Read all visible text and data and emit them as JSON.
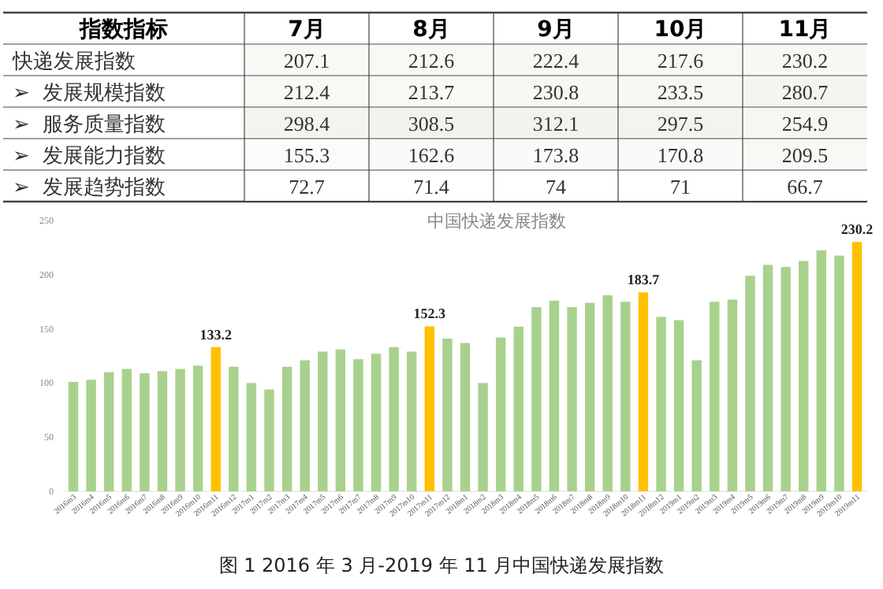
{
  "chart_data": [
    {
      "type": "heatmap",
      "annotations": [
        "指数指标"
      ],
      "categories": [
        "7月",
        "8月",
        "9月",
        "10月",
        "11月"
      ],
      "y_categories": [
        "快递发展指数",
        "➢  发展规模指数",
        "➢  服务质量指数",
        "➢  发展能力指数",
        "➢  发展趋势指数"
      ],
      "cells": [
        [
          207.1,
          212.6,
          222.4,
          217.6,
          230.2
        ],
        [
          212.4,
          213.7,
          230.8,
          233.5,
          280.7
        ],
        [
          298.4,
          308.5,
          312.1,
          297.5,
          254.9
        ],
        [
          155.3,
          162.6,
          173.8,
          170.8,
          209.5
        ],
        [
          72.7,
          71.4,
          74,
          71,
          66.7
        ]
      ],
      "cell_labels": [
        [
          "207.1",
          "212.6",
          "222.4",
          "217.6",
          "230.2"
        ],
        [
          "212.4",
          "213.7",
          "230.8",
          "233.5",
          "280.7"
        ],
        [
          "298.4",
          "308.5",
          "312.1",
          "297.5",
          "254.9"
        ],
        [
          "155.3",
          "162.6",
          "173.8",
          "170.8",
          "209.5"
        ],
        [
          "72.7",
          "71.4",
          "74",
          "71",
          "66.7"
        ]
      ]
    },
    {
      "type": "bar",
      "title": "中国快递发展指数",
      "annotations": [
        "图 1 2016 年 3 月-2019 年 11 月中国快递发展指数"
      ],
      "categories": [
        "2016m3",
        "2016m4",
        "2016m5",
        "2016m6",
        "2016m7",
        "2016m8",
        "2016m9",
        "2016m10",
        "2016m11",
        "2016m12",
        "2017m1",
        "2017m2",
        "2017m3",
        "2017m4",
        "2017m5",
        "2017m6",
        "2017m7",
        "2017m8",
        "2017m9",
        "2017m10",
        "2017m11",
        "2017m12",
        "2018m1",
        "2018m2",
        "2018m3",
        "2018m4",
        "2018m5",
        "2018m6",
        "2018m7",
        "2018m8",
        "2018m9",
        "2018m10",
        "2018m11",
        "2018m12",
        "2019m1",
        "2019m2",
        "2019m3",
        "2019m4",
        "2019m5",
        "2019m6",
        "2019m7",
        "2019m8",
        "2019m9",
        "2019m10",
        "2019m11"
      ],
      "values": [
        101,
        103,
        110,
        113,
        109,
        111,
        113,
        116,
        133.2,
        115,
        100,
        94,
        115,
        121,
        129,
        131,
        122,
        127,
        133,
        129,
        152.3,
        141,
        137,
        100,
        142,
        152,
        170,
        176,
        170,
        174,
        181,
        175,
        183.7,
        161,
        158,
        121,
        175,
        177,
        199,
        209,
        207.1,
        212.6,
        222.4,
        217.6,
        230.2
      ],
      "colors": [
        "#a9d18e",
        "#a9d18e",
        "#a9d18e",
        "#a9d18e",
        "#a9d18e",
        "#a9d18e",
        "#a9d18e",
        "#a9d18e",
        "#ffc000",
        "#a9d18e",
        "#a9d18e",
        "#a9d18e",
        "#a9d18e",
        "#a9d18e",
        "#a9d18e",
        "#a9d18e",
        "#a9d18e",
        "#a9d18e",
        "#a9d18e",
        "#a9d18e",
        "#ffc000",
        "#a9d18e",
        "#a9d18e",
        "#a9d18e",
        "#a9d18e",
        "#a9d18e",
        "#a9d18e",
        "#a9d18e",
        "#a9d18e",
        "#a9d18e",
        "#a9d18e",
        "#a9d18e",
        "#ffc000",
        "#a9d18e",
        "#a9d18e",
        "#a9d18e",
        "#a9d18e",
        "#a9d18e",
        "#a9d18e",
        "#a9d18e",
        "#a9d18e",
        "#a9d18e",
        "#a9d18e",
        "#a9d18e",
        "#ffc000"
      ],
      "value_labels": [
        null,
        null,
        null,
        null,
        null,
        null,
        null,
        null,
        "133.2",
        null,
        null,
        null,
        null,
        null,
        null,
        null,
        null,
        null,
        null,
        null,
        "152.3",
        null,
        null,
        null,
        null,
        null,
        null,
        null,
        null,
        null,
        null,
        null,
        "183.7",
        null,
        null,
        null,
        null,
        null,
        null,
        null,
        null,
        null,
        null,
        null,
        "230.2"
      ],
      "ylim": [
        0,
        250
      ],
      "yticks": [
        0,
        50,
        100,
        150,
        200,
        250
      ],
      "grid": false
    }
  ]
}
